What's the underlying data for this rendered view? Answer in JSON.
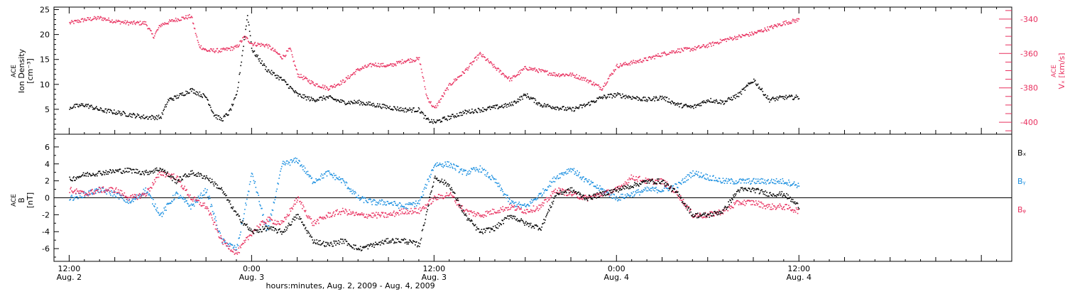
{
  "colors": {
    "black": "#000000",
    "pink": "#e8305f",
    "blue": "#1a8fe0"
  },
  "x_axis": {
    "title": "hours:minutes, Aug.  2, 2009 - Aug.  4, 2009",
    "range_hours": [
      -1,
      62
    ],
    "major_ticks": [
      {
        "hour": 0,
        "time": "12:00",
        "date": "Aug. 2"
      },
      {
        "hour": 12,
        "time": "0:00",
        "date": "Aug. 3"
      },
      {
        "hour": 24,
        "time": "12:00",
        "date": "Aug. 3"
      },
      {
        "hour": 36,
        "time": "0:00",
        "date": "Aug. 4"
      },
      {
        "hour": 48,
        "time": "12:00",
        "date": "Aug. 4"
      }
    ]
  },
  "chart_data": [
    {
      "type": "scatter",
      "panel": "top",
      "ylabel_left": [
        "ACE",
        "Ion Density",
        "[cm⁻³]"
      ],
      "ylabel_right": [
        "ACE",
        "Vₓ [km/s]"
      ],
      "ylim_left": [
        0,
        25.5
      ],
      "yticks_left": [
        "5",
        "10",
        "15",
        "20",
        "25"
      ],
      "ylim_right": [
        -407,
        -333
      ],
      "yticks_right": [
        "-340",
        "-360",
        "-380",
        "-400"
      ],
      "series": [
        {
          "color": "black",
          "axis": "left",
          "x": [
            0,
            1,
            2,
            3,
            4,
            5,
            6,
            6.5,
            7,
            8,
            9,
            9.5,
            10,
            10.5,
            11,
            11.3,
            11.7,
            12,
            12.5,
            13,
            14,
            15,
            16,
            17,
            18,
            19,
            20,
            21,
            22,
            23,
            23.5,
            24,
            25,
            26,
            27,
            28,
            29,
            30,
            31,
            32,
            33,
            34,
            35,
            36,
            37,
            38,
            39,
            40,
            41,
            42,
            43,
            44,
            45,
            46,
            47,
            48
          ],
          "y": [
            5.5,
            6,
            5,
            4.5,
            4,
            3.5,
            3.5,
            7,
            7.5,
            9,
            7.5,
            4,
            3,
            4.5,
            8,
            15,
            24,
            17,
            15,
            13,
            11,
            8,
            7,
            7.5,
            6.5,
            6.5,
            6,
            5.5,
            5,
            5,
            3,
            2.5,
            3.5,
            4.5,
            5,
            5.5,
            6,
            8,
            6,
            5.5,
            5,
            6,
            7.5,
            8,
            7.5,
            7,
            7.5,
            6,
            5.5,
            7,
            6.5,
            8,
            11,
            7,
            7.5,
            7.5
          ]
        },
        {
          "color": "pink",
          "axis": "right",
          "x": [
            0,
            1,
            2,
            3,
            4,
            5,
            5.5,
            6,
            7,
            8,
            8.5,
            9,
            10,
            11,
            11.5,
            12,
            13,
            14,
            14.5,
            15,
            16,
            17,
            18,
            19,
            20,
            21,
            22,
            23,
            23.5,
            24,
            25,
            26,
            27,
            28,
            29,
            30,
            31,
            32,
            33,
            34,
            35,
            36,
            37,
            38,
            39,
            40,
            41,
            42,
            43,
            44,
            45,
            46,
            47,
            48
          ],
          "y": [
            -342,
            -340,
            -339,
            -341,
            -342,
            -342,
            -350,
            -343,
            -340,
            -338,
            -355,
            -358,
            -358,
            -356,
            -350,
            -354,
            -355,
            -362,
            -357,
            -372,
            -377,
            -380,
            -376,
            -369,
            -366,
            -367,
            -364,
            -363,
            -385,
            -392,
            -378,
            -370,
            -360,
            -368,
            -375,
            -368,
            -370,
            -372,
            -372,
            -375,
            -380,
            -367,
            -365,
            -363,
            -360,
            -358,
            -357,
            -355,
            -352,
            -350,
            -348,
            -345,
            -342,
            -340
          ]
        }
      ]
    },
    {
      "type": "scatter",
      "panel": "bottom",
      "ylabel": [
        "ACE",
        "B",
        "[nT]"
      ],
      "ylim": [
        -7.5,
        7.5
      ],
      "yticks": [
        "6",
        "4",
        "2",
        "0",
        "-2",
        "-4",
        "-6"
      ],
      "legend": [
        "Bₓ",
        "Bᵧ",
        "Bᵩ"
      ],
      "series": [
        {
          "name": "Bx",
          "color": "black",
          "x": [
            0,
            1,
            2,
            3,
            4,
            5,
            6,
            7,
            8,
            9,
            10,
            11,
            12,
            13,
            14,
            15,
            16,
            17,
            18,
            19,
            20,
            21,
            22,
            23,
            24,
            25,
            26,
            27,
            28,
            29,
            30,
            31,
            32,
            33,
            34,
            35,
            36,
            37,
            38,
            39,
            40,
            41,
            42,
            43,
            44,
            45,
            46,
            47,
            48
          ],
          "y": [
            2.2,
            2.8,
            3,
            3.2,
            3.3,
            3,
            3.5,
            2,
            3,
            2.5,
            1,
            -2,
            -4,
            -3.5,
            -4,
            -2,
            -5,
            -5.5,
            -5,
            -6,
            -5.5,
            -5,
            -5,
            -5.5,
            2.5,
            1.5,
            -2,
            -4,
            -3.5,
            -2,
            -3,
            -3.5,
            0.5,
            1,
            0,
            0.5,
            1,
            1.5,
            2,
            2,
            0.5,
            -2,
            -2,
            -1.5,
            1,
            1,
            0.5,
            0.5,
            -1
          ]
        },
        {
          "name": "By",
          "color": "blue",
          "x": [
            0,
            1,
            2,
            3,
            4,
            5,
            6,
            7,
            8,
            9,
            10,
            11,
            12,
            13,
            14,
            15,
            16,
            17,
            18,
            19,
            20,
            21,
            22,
            23,
            24,
            25,
            26,
            27,
            28,
            29,
            30,
            31,
            32,
            33,
            34,
            35,
            36,
            37,
            38,
            39,
            40,
            41,
            42,
            43,
            44,
            45,
            46,
            47,
            48
          ],
          "y": [
            0,
            0.5,
            1,
            0.5,
            -0.5,
            1,
            -2,
            0.5,
            -1,
            1,
            -5,
            -6,
            3,
            -4,
            4,
            4.5,
            2,
            3,
            2,
            0,
            -0.5,
            -0.5,
            -1,
            -0.5,
            4,
            4,
            3,
            3.5,
            2,
            -0.5,
            -1,
            0.5,
            2.5,
            3.5,
            2,
            1,
            0,
            0.5,
            1,
            1,
            1.5,
            3,
            2.5,
            2,
            2,
            2,
            2,
            2,
            1.5
          ]
        },
        {
          "name": "Bz",
          "color": "pink",
          "x": [
            0,
            1,
            2,
            3,
            4,
            5,
            6,
            7,
            8,
            9,
            10,
            11,
            12,
            13,
            14,
            15,
            16,
            17,
            18,
            19,
            20,
            21,
            22,
            23,
            24,
            25,
            26,
            27,
            28,
            29,
            30,
            31,
            32,
            33,
            34,
            35,
            36,
            37,
            38,
            39,
            40,
            41,
            42,
            43,
            44,
            45,
            46,
            47,
            48
          ],
          "y": [
            1,
            0.5,
            1,
            1,
            0,
            0.5,
            3,
            2.5,
            0,
            -1,
            -5,
            -6.5,
            -4,
            -2.5,
            -3,
            0,
            -3,
            -2,
            -1.5,
            -2,
            -2,
            -2,
            -1.5,
            -1.5,
            0,
            0.5,
            -1.5,
            -2,
            -1.5,
            -1,
            -1.5,
            -1,
            1,
            0.5,
            0,
            0.5,
            1,
            2.5,
            2,
            2,
            0.5,
            -2,
            -2,
            -1.5,
            -0.5,
            -0.5,
            -1,
            -1,
            -1.5
          ]
        }
      ]
    }
  ]
}
